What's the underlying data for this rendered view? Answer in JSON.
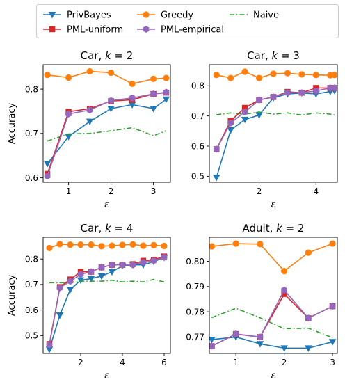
{
  "legend": {
    "placement": "top-center",
    "entries": [
      {
        "name": "PrivBayes",
        "color": "#1f77b4",
        "marker": "triangle-down",
        "dash": "solid"
      },
      {
        "name": "Greedy",
        "color": "#ff7f0e",
        "marker": "circle",
        "dash": "solid"
      },
      {
        "name": "Naive",
        "color": "#2ca02c",
        "marker": "none",
        "dash": "dashdot"
      },
      {
        "name": "PML-uniform",
        "color": "#d62728",
        "marker": "square",
        "dash": "solid"
      },
      {
        "name": "PML-empirical",
        "color": "#9467bd",
        "marker": "hexagon",
        "dash": "solid"
      }
    ]
  },
  "chart_data": [
    {
      "type": "line",
      "title": "Car, k = 2",
      "xlabel": "ε",
      "ylabel": "Accuracy",
      "xlim": [
        0.4,
        3.4
      ],
      "ylim": [
        0.59,
        0.855
      ],
      "xticks": [
        1,
        2,
        3
      ],
      "yticks": [
        0.6,
        0.7,
        0.8
      ],
      "ytick_labels": [
        "0.6",
        "0.7",
        "0.8"
      ],
      "x": [
        0.5,
        1.0,
        1.5,
        2.0,
        2.5,
        3.0,
        3.3
      ],
      "series": [
        {
          "name": "PrivBayes",
          "values": [
            0.632,
            0.693,
            0.727,
            0.756,
            0.765,
            0.756,
            0.777
          ]
        },
        {
          "name": "Greedy",
          "values": [
            0.832,
            0.826,
            0.84,
            0.837,
            0.812,
            0.823,
            0.825
          ]
        },
        {
          "name": "Naive",
          "values": [
            0.683,
            0.699,
            0.7,
            0.706,
            0.713,
            0.695,
            0.706
          ]
        },
        {
          "name": "PML-uniform",
          "values": [
            0.609,
            0.749,
            0.756,
            0.773,
            0.776,
            0.789,
            0.792
          ]
        },
        {
          "name": "PML-empirical",
          "values": [
            0.604,
            0.744,
            0.753,
            0.774,
            0.78,
            0.789,
            0.793
          ]
        }
      ]
    },
    {
      "type": "line",
      "title": "Car, k = 3",
      "xlabel": "ε",
      "ylabel": "",
      "xlim": [
        0.25,
        4.75
      ],
      "ylim": [
        0.48,
        0.87
      ],
      "xticks": [
        2,
        4
      ],
      "yticks": [
        0.5,
        0.6,
        0.7,
        0.8
      ],
      "ytick_labels": [
        "0.5",
        "0.6",
        "0.7",
        "0.8"
      ],
      "x": [
        0.5,
        1.0,
        1.5,
        2.0,
        2.5,
        3.0,
        3.5,
        4.0,
        4.5,
        4.65
      ],
      "series": [
        {
          "name": "PrivBayes",
          "values": [
            0.496,
            0.653,
            0.688,
            0.703,
            0.76,
            0.773,
            0.776,
            0.773,
            0.781,
            0.784
          ]
        },
        {
          "name": "Greedy",
          "values": [
            0.836,
            0.826,
            0.847,
            0.826,
            0.84,
            0.842,
            0.838,
            0.836,
            0.835,
            0.836
          ]
        },
        {
          "name": "Naive",
          "values": [
            0.704,
            0.71,
            0.706,
            0.713,
            0.706,
            0.71,
            0.703,
            0.71,
            0.706,
            0.703
          ]
        },
        {
          "name": "PML-uniform",
          "values": [
            0.59,
            0.684,
            0.727,
            0.753,
            0.763,
            0.78,
            0.777,
            0.793,
            0.793,
            0.793
          ]
        },
        {
          "name": "PML-empirical",
          "values": [
            0.59,
            0.677,
            0.713,
            0.753,
            0.763,
            0.777,
            0.777,
            0.783,
            0.793,
            0.793
          ]
        }
      ]
    },
    {
      "type": "line",
      "title": "Car, k = 4",
      "xlabel": "ε",
      "ylabel": "Accuracy",
      "xlim": [
        0.2,
        6.3
      ],
      "ylim": [
        0.43,
        0.885
      ],
      "xticks": [
        2,
        4,
        6
      ],
      "yticks": [
        0.5,
        0.6,
        0.7,
        0.8
      ],
      "ytick_labels": [
        "0.5",
        "0.6",
        "0.7",
        "0.8"
      ],
      "x": [
        0.5,
        1.0,
        1.5,
        2.0,
        2.5,
        3.0,
        3.5,
        4.0,
        4.5,
        5.0,
        5.5,
        6.0
      ],
      "series": [
        {
          "name": "PrivBayes",
          "values": [
            0.446,
            0.58,
            0.68,
            0.717,
            0.723,
            0.733,
            0.75,
            0.773,
            0.777,
            0.777,
            0.79,
            0.805
          ]
        },
        {
          "name": "Greedy",
          "values": [
            0.843,
            0.858,
            0.856,
            0.856,
            0.856,
            0.85,
            0.852,
            0.855,
            0.857,
            0.852,
            0.854,
            0.851
          ]
        },
        {
          "name": "Naive",
          "values": [
            0.707,
            0.707,
            0.707,
            0.713,
            0.713,
            0.713,
            0.717,
            0.71,
            0.713,
            0.71,
            0.72,
            0.71
          ]
        },
        {
          "name": "PML-uniform",
          "values": [
            0.467,
            0.69,
            0.72,
            0.75,
            0.75,
            0.767,
            0.777,
            0.777,
            0.78,
            0.793,
            0.797,
            0.81
          ]
        },
        {
          "name": "PML-empirical",
          "values": [
            0.463,
            0.687,
            0.713,
            0.74,
            0.75,
            0.767,
            0.777,
            0.777,
            0.777,
            0.787,
            0.793,
            0.807
          ]
        }
      ]
    },
    {
      "type": "line",
      "title": "Adult, k = 2",
      "xlabel": "ε",
      "ylabel": "",
      "xlim": [
        0.45,
        3.1
      ],
      "ylim": [
        0.7635,
        0.8095
      ],
      "xticks": [
        1,
        2,
        3
      ],
      "yticks": [
        0.77,
        0.78,
        0.79,
        0.8
      ],
      "ytick_labels": [
        "0.77",
        "0.78",
        "0.79",
        "0.80"
      ],
      "x": [
        0.5,
        1.0,
        1.5,
        2.0,
        2.5,
        3.0
      ],
      "series": [
        {
          "name": "PrivBayes",
          "values": [
            0.769,
            0.77,
            0.7673,
            0.7656,
            0.7656,
            0.7681
          ]
        },
        {
          "name": "Greedy",
          "values": [
            0.8059,
            0.807,
            0.8068,
            0.7961,
            0.8034,
            0.807
          ]
        },
        {
          "name": "Naive",
          "values": [
            0.7777,
            0.7814,
            0.7776,
            0.7733,
            0.7735,
            0.7697
          ]
        },
        {
          "name": "PML-uniform",
          "values": [
            0.7664,
            0.7712,
            0.77,
            0.787,
            0.7775,
            0.7822
          ]
        },
        {
          "name": "PML-empirical",
          "values": [
            0.7664,
            0.7712,
            0.77,
            0.7886,
            0.7775,
            0.7822
          ]
        }
      ]
    }
  ]
}
